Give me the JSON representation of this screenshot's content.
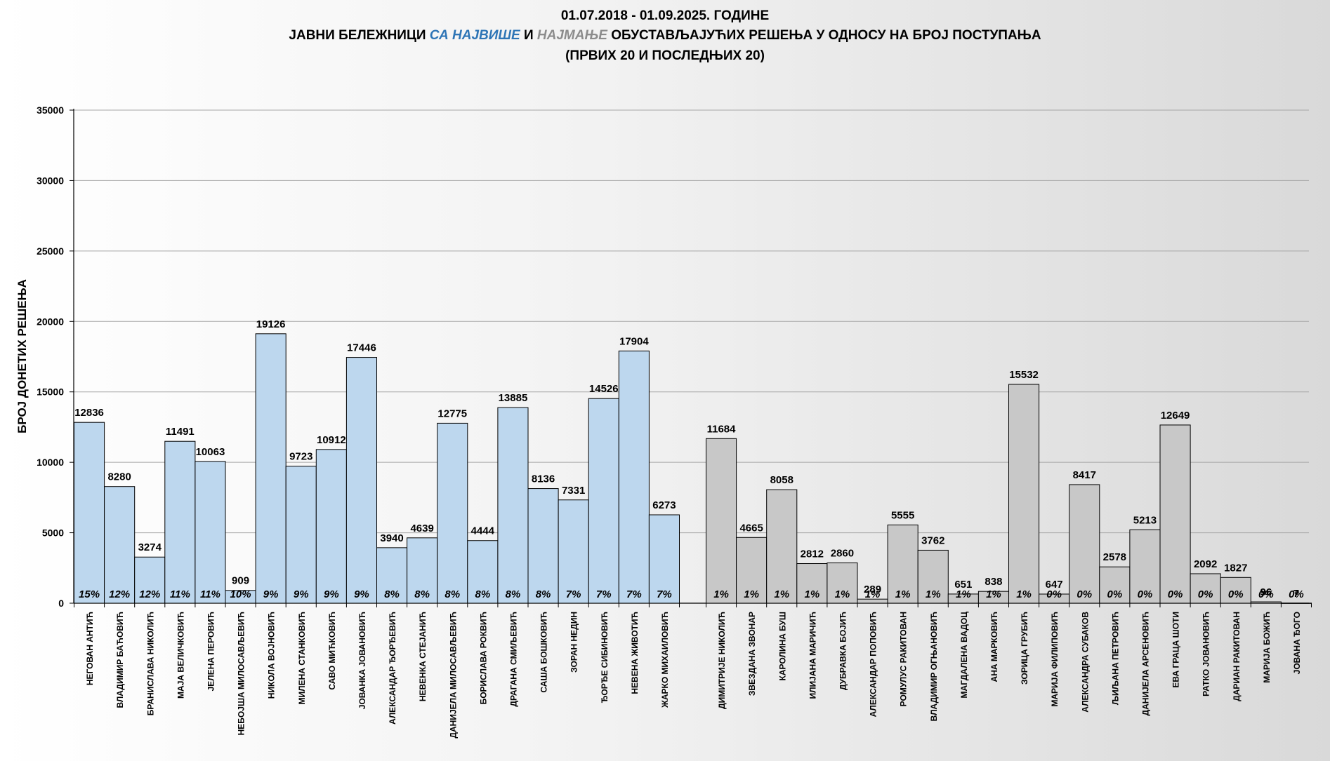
{
  "chart_data": {
    "type": "bar",
    "title_line1": "01.07.2018  - 01.09.2025. ГОДИНЕ",
    "title_line2_parts": [
      {
        "text": "ЈАВНИ БЕЛЕЖНИЦИ ",
        "style": "normal"
      },
      {
        "text": "СА НАЈВИШЕ",
        "style": "blue"
      },
      {
        "text": " И ",
        "style": "normal"
      },
      {
        "text": "НАЈМАЊЕ",
        "style": "gray"
      },
      {
        "text": " ОБУСТАВЉАЈУЋИХ РЕШЕЊА У ОДНОСУ НА БРОЈ ПОСТУПАЊА",
        "style": "normal"
      }
    ],
    "title_line3": "(ПРВИХ 20 И ПОСЛЕДЊИХ 20)",
    "ylabel": "БРОЈ ДОНЕТИХ РЕШЕЊА",
    "xlabel": "",
    "ylim": [
      0,
      35000
    ],
    "yticks": [
      "0",
      "5000",
      "10000",
      "15000",
      "20000",
      "25000",
      "30000",
      "35000"
    ],
    "grid": true,
    "colors": {
      "top": "#bdd7ee",
      "bottom": "#c8c8c8",
      "border": "#000000",
      "grid": "#a6a6a6"
    },
    "groups": [
      {
        "group": "top",
        "categories": [
          "НЕГОВАН АНТИЋ",
          "ВЛАДИМИР БАЋОВИЋ",
          "БРАНИСЛАВА НИКОЛИЋ",
          "МАЈА ВЕЛИЧКОВИЋ",
          "ЈЕЛЕНА ПЕРОВИЋ",
          "НЕБОЈША МИЛОСАВЉЕВИЋ",
          "НИКОЛА ВОЈНОВИЋ",
          "МИЛЕНА СТАНКОВИЋ",
          "САВО МИЋКОВИЋ",
          "ЈОВАНКА ЈОВАНОВИЋ",
          "АЛЕКСАНДАР ЂОРЂЕВИЋ",
          "НЕВЕНКА СТЕЈАНИЋ",
          "ДАНИЈЕЛА МИЛОСАВЉЕВИЋ",
          "БОРИСЛАВА РОКВИЋ",
          "ДРАГАНА СМИЉЕВИЋ",
          "САША БОШКОВИЋ",
          "ЗОРАН НЕДИН",
          "ЂОРЂЕ СИБИНОВИЋ",
          "НЕВЕНА ЖИВОТИЋ",
          "ЖАРКО МИХАИЛОВИЋ"
        ],
        "values": [
          12836,
          8280,
          3274,
          11491,
          10063,
          909,
          19126,
          9723,
          10912,
          17446,
          3940,
          4639,
          12775,
          4444,
          13885,
          8136,
          7331,
          14526,
          17904,
          6273
        ],
        "value_labels": [
          "12836",
          "8280",
          "3274",
          "11491",
          "10063",
          "909",
          "19126",
          "9723",
          "10912",
          "17446",
          "3940",
          "4639",
          "12775",
          "4444",
          "13885",
          "8136",
          "7331",
          "14526",
          "17904",
          "6273"
        ],
        "percents": [
          "15%",
          "12%",
          "12%",
          "11%",
          "11%",
          "10%",
          "9%",
          "9%",
          "9%",
          "9%",
          "8%",
          "8%",
          "8%",
          "8%",
          "8%",
          "8%",
          "7%",
          "7%",
          "7%",
          "7%"
        ]
      },
      {
        "group": "bottom",
        "categories": [
          "ДИМИТРИЈЕ НИКОЛИЋ",
          "ЗВЕЗДАНА ЗВОНАР",
          "КАРОЛИНА БУШ",
          "ИЛИЈАНА МАРИЧИЋ",
          "ДУБРАВКА БОЈИЋ",
          "АЛЕКСАНДАР ПОПОВИЋ",
          "РОМУЛУС РАКИТОВАН",
          "ВЛАДИМИР ОГЊАНОВИЋ",
          "МАГДАЛЕНА ВАДОЦ",
          "АНА МАРКОВИЋ",
          "ЗОРИЦА ГРУБИЋ",
          "МАРИЈА ФИЛИПОВИЋ",
          "АЛЕКСАНДРА СУБАКОВ",
          "ЉИЉАНА ПЕТРОВИЋ",
          "ДАНИЈЕЛА АРСЕНОВИЋ",
          "ЕВА ГРАЦА ШОТИ",
          "РАТКО ЈОВАНОВИЋ",
          "ДАРИАН РАКИТОВАН",
          "МАРИЈА БОЖИЋ",
          "ЈОВАНА ЂОГО"
        ],
        "values": [
          11684,
          4665,
          8058,
          2812,
          2860,
          289,
          5555,
          3762,
          651,
          838,
          15532,
          647,
          8417,
          2578,
          5213,
          12649,
          2092,
          1827,
          96,
          7
        ],
        "value_labels": [
          "11684",
          "4665",
          "8058",
          "2812",
          "2860",
          "289",
          "5555",
          "3762",
          "651",
          "838",
          "15532",
          "647",
          "8417",
          "2578",
          "5213",
          "12649",
          "2092",
          "1827",
          "96",
          "7"
        ],
        "percents": [
          "1%",
          "1%",
          "1%",
          "1%",
          "1%",
          "1%",
          "1%",
          "1%",
          "1%",
          "1%",
          "1%",
          "0%",
          "0%",
          "0%",
          "0%",
          "0%",
          "0%",
          "0%",
          "0%",
          "0%"
        ]
      }
    ]
  }
}
